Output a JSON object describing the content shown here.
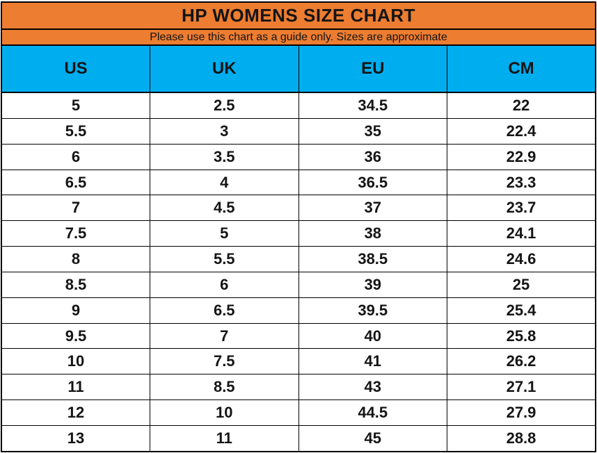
{
  "title": "HP WOMENS SIZE CHART",
  "subtitle": "Please use this chart as a guide only. Sizes are approximate",
  "colors": {
    "header_orange": "#ED7D31",
    "header_blue": "#00AEEF",
    "border_black": "#000000",
    "row_white": "#FFFFFF",
    "text_black": "#141414"
  },
  "chart_data": {
    "type": "table",
    "title": "HP WOMENS SIZE CHART",
    "subtitle": "Please use this chart as a guide only. Sizes are approximate",
    "columns": [
      "US",
      "UK",
      "EU",
      "CM"
    ],
    "rows": [
      [
        "5",
        "2.5",
        "34.5",
        "22"
      ],
      [
        "5.5",
        "3",
        "35",
        "22.4"
      ],
      [
        "6",
        "3.5",
        "36",
        "22.9"
      ],
      [
        "6.5",
        "4",
        "36.5",
        "23.3"
      ],
      [
        "7",
        "4.5",
        "37",
        "23.7"
      ],
      [
        "7.5",
        "5",
        "38",
        "24.1"
      ],
      [
        "8",
        "5.5",
        "38.5",
        "24.6"
      ],
      [
        "8.5",
        "6",
        "39",
        "25"
      ],
      [
        "9",
        "6.5",
        "39.5",
        "25.4"
      ],
      [
        "9.5",
        "7",
        "40",
        "25.8"
      ],
      [
        "10",
        "7.5",
        "41",
        "26.2"
      ],
      [
        "11",
        "8.5",
        "43",
        "27.1"
      ],
      [
        "12",
        "10",
        "44.5",
        "27.9"
      ],
      [
        "13",
        "11",
        "45",
        "28.8"
      ]
    ]
  }
}
